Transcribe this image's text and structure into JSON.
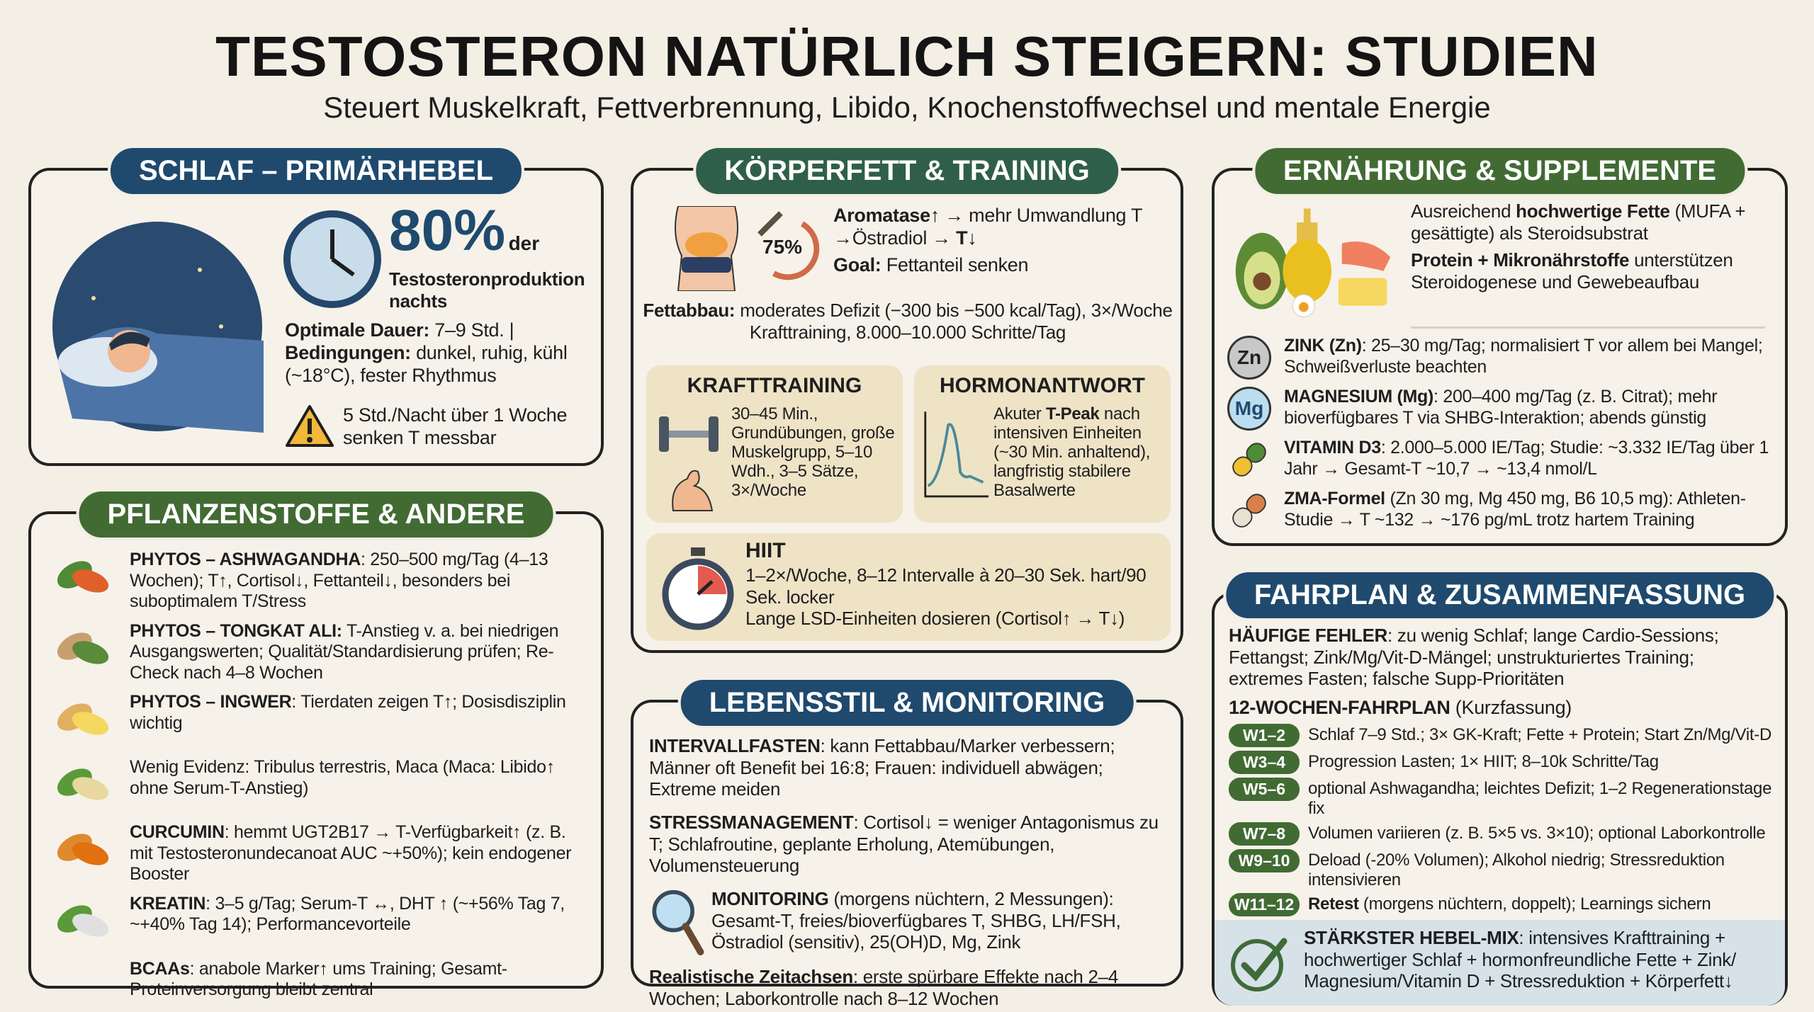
{
  "header": {
    "title": "TESTOSTERON NATÜRLICH STEIGERN: STUDIEN",
    "subtitle": "Steuert Muskelkraft, Fettverbrennung, Libido, Knochenstoffwechsel und mentale Energie"
  },
  "schlaf": {
    "title": "SCHLAF – PRIMÄRHEBEL",
    "big": "80%",
    "big_suffix": "der",
    "big_line2": "Testosteronproduktion",
    "big_line3": "nachts",
    "dauer_b": "Optimale Dauer:",
    "dauer_t": " 7–9 Std. |",
    "bed_b": "Bedingungen:",
    "bed_t": " dunkel, ruhig, kühl (~18°C), fester Rhythmus",
    "warn": "5 Std./Nacht über 1 Woche senken T messbar"
  },
  "pflanzen": {
    "title": "PFLANZENSTOFFE & ANDERE",
    "items": [
      {
        "icon": "ashwagandha-plant-icon",
        "b": "PHYTOS – ASHWAGANDHA",
        "t": ": 250–500 mg/Tag (4–13 Wochen); T↑, Cortisol↓, Fettanteil↓, besonders bei suboptimalem T/Stress"
      },
      {
        "icon": "tongkat-root-icon",
        "b": "PHYTOS – TONGKAT ALI:",
        "t": " T-Anstieg v. a. bei niedrigen Ausgangswerten; Qualität/Standardisierung prüfen; Re-Check nach 4–8 Wochen"
      },
      {
        "icon": "ginger-icon",
        "b": "PHYTOS – INGWER",
        "t": ": Tierdaten zeigen T↑; Dosisdisziplin wichtig"
      },
      {
        "icon": "maca-root-icon",
        "b": "",
        "t": "Wenig Evidenz: Tribulus terrestris, Maca (Maca: Libido↑ ohne Serum-T-Anstieg)"
      },
      {
        "icon": "turmeric-icon",
        "b": "CURCUMIN",
        "t": ": hemmt UGT2B17 → T-Verfügbarkeit↑ (z. B. mit Testosteronundecanoat AUC ~+50%); kein endogener Booster"
      },
      {
        "icon": "leaves-icon",
        "b": "KREATIN",
        "t": ": 3–5 g/Tag; Serum-T ↔, DHT ↑ (~+56% Tag 7, ~+40% Tag 14); Performancevorteile"
      },
      {
        "icon": "",
        "b": "BCAAs",
        "t": ": anabole Marker↑ ums Training; Gesamt-Proteinversorgung bleibt zentral"
      }
    ]
  },
  "koerperfett": {
    "title": "KÖRPERFETT & TRAINING",
    "pct": "75%",
    "aro_b": "Aromatase↑",
    "aro_t": " → mehr Umwandlung T →Östradiol → ",
    "aro_b2": "T↓",
    "goal_b": "Goal:",
    "goal_t": " Fettanteil senken",
    "fett_b": "Fettabbau:",
    "fett_t": " moderates Defizit (−300 bis −500 kcal/Tag), 3×/Woche Krafttraining, 8.000–10.000 Schritte/Tag",
    "kraft": {
      "title": "KRAFTTRAINING",
      "text": "30–45 Min., Grundübungen, große Muskelgrupp, 5–10 Wdh., 3–5 Sätze, 3×/Woche"
    },
    "hormon": {
      "title": "HORMONANTWORT",
      "t1": "Akuter ",
      "b": "T-Peak",
      "t2": " nach intensiven Einheiten (~30 Min. anhaltend), langfristig stabilere Basalwerte"
    },
    "hiit": {
      "title": "HIIT",
      "l1": "1–2×/Woche, 8–12 Intervalle à 20–30 Sek. hart/90 Sek. locker",
      "l2": "Lange LSD-Einheiten dosieren (Cortisol↑ → T↓)"
    }
  },
  "lebensstil": {
    "title": "LEBENSSTIL & MONITORING",
    "items": [
      {
        "b": "INTERVALLFASTEN",
        "t": ": kann Fettabbau/Marker verbessern; Männer oft Benefit bei 16:8; Frauen: individuell abwägen; Extreme meiden"
      },
      {
        "b": "STRESSMANAGEMENT",
        "t": ": Cortisol↓ = weniger Antagonismus zu T; Schlafroutine, geplante Erholung, Atemübungen, Volumensteuerung"
      },
      {
        "b": "MONITORING",
        "t": " (morgens nüchtern, 2 Messungen): Gesamt-T, freies/bioverfügbares T, SHBG, LH/FSH, Östradiol (sensitiv), 25(OH)D, Mg, Zink"
      },
      {
        "b": "Realistische Zeitachsen",
        "t": ": erste spürbare Effekte nach 2–4 Wochen; Laborkontrolle nach 8–12 Wochen"
      }
    ]
  },
  "ernaehrung": {
    "title": "ERNÄHRUNG & SUPPLEMENTE",
    "f1_t1": "Ausreichend ",
    "f1_b": "hochwertige Fette",
    "f1_t2": " (MUFA + gesättigte) als Steroidsubstrat",
    "f2_b": "Protein + Mikronährstoffe",
    "f2_t": " unterstützen Steroidogenese und Gewebeaufbau",
    "items": [
      {
        "badge": "Zn",
        "b": "ZINK (Zn)",
        "t": ": 25–30 mg/Tag; normalisiert T vor allem bei Mangel; Schweißverluste beachten"
      },
      {
        "badge": "Mg",
        "b": "MAGNESIUM (Mg)",
        "t": ": 200–400 mg/Tag (z. B. Citrat); mehr bioverfügbares T via SHBG-Interaktion; abends günstig"
      },
      {
        "badge": "",
        "b": "VITAMIN D3",
        "t": ": 2.000–5.000 IE/Tag; Studie: ~3.332 IE/Tag über 1 Jahr → Gesamt-T ~10,7 → ~13,4 nmol/L"
      },
      {
        "badge": "",
        "b": "ZMA-Formel",
        "t": " (Zn 30 mg, Mg 450 mg, B6 10,5 mg): Athleten-Studie → T ~132 → ~176 pg/mL trotz hartem Training"
      }
    ]
  },
  "fahrplan": {
    "title": "FAHRPLAN & ZUSAMMENFASSUNG",
    "fehler_b": "HÄUFIGE FEHLER",
    "fehler_t": ": zu wenig Schlaf; lange Cardio-Sessions; Fettangst; Zink/Mg/Vit-D-Mängel; unstrukturiertes Training; extremes Fasten; falsche Supp-Prioritäten",
    "plan_b": "12-WOCHEN-FAHRPLAN",
    "plan_t": " (Kurzfassung)",
    "weeks": [
      {
        "w": "W1–2",
        "b": "",
        "t": "Schlaf 7–9 Std.; 3× GK-Kraft; Fette + Protein; Start Zn/Mg/Vit-D"
      },
      {
        "w": "W3–4",
        "b": "",
        "t": "Progression Lasten; 1× HIIT; 8–10k Schritte/Tag"
      },
      {
        "w": "W5–6",
        "b": "",
        "t": "optional Ashwagandha; leichtes Defizit; 1–2 Regenerationstage fix"
      },
      {
        "w": "W7–8",
        "b": "",
        "t": "Volumen variieren (z. B. 5×5 vs. 3×10); optional Laborkontrolle"
      },
      {
        "w": "W9–10",
        "b": "",
        "t": "Deload (-20% Volumen); Alkohol niedrig; Stressreduktion intensivieren"
      },
      {
        "w": "W11–12",
        "b": "Retest",
        "t": " (morgens nüchtern, doppelt); Learnings sichern"
      }
    ],
    "mix_b": "STÄRKSTER HEBEL-MIX",
    "mix_t": ": intensives Krafttraining + hochwertiger Schlaf + hormonfreundliche Fette + Zink/ Magnesium/Vitamin D + Stressreduktion + Körperfett↓"
  },
  "colors": {
    "navy": "#1f4a6e",
    "green": "#426b34",
    "teal": "#2f5f4b",
    "panel": "#efe3c6",
    "highlight": "#d6e2e8",
    "background": "#f3efe5"
  }
}
